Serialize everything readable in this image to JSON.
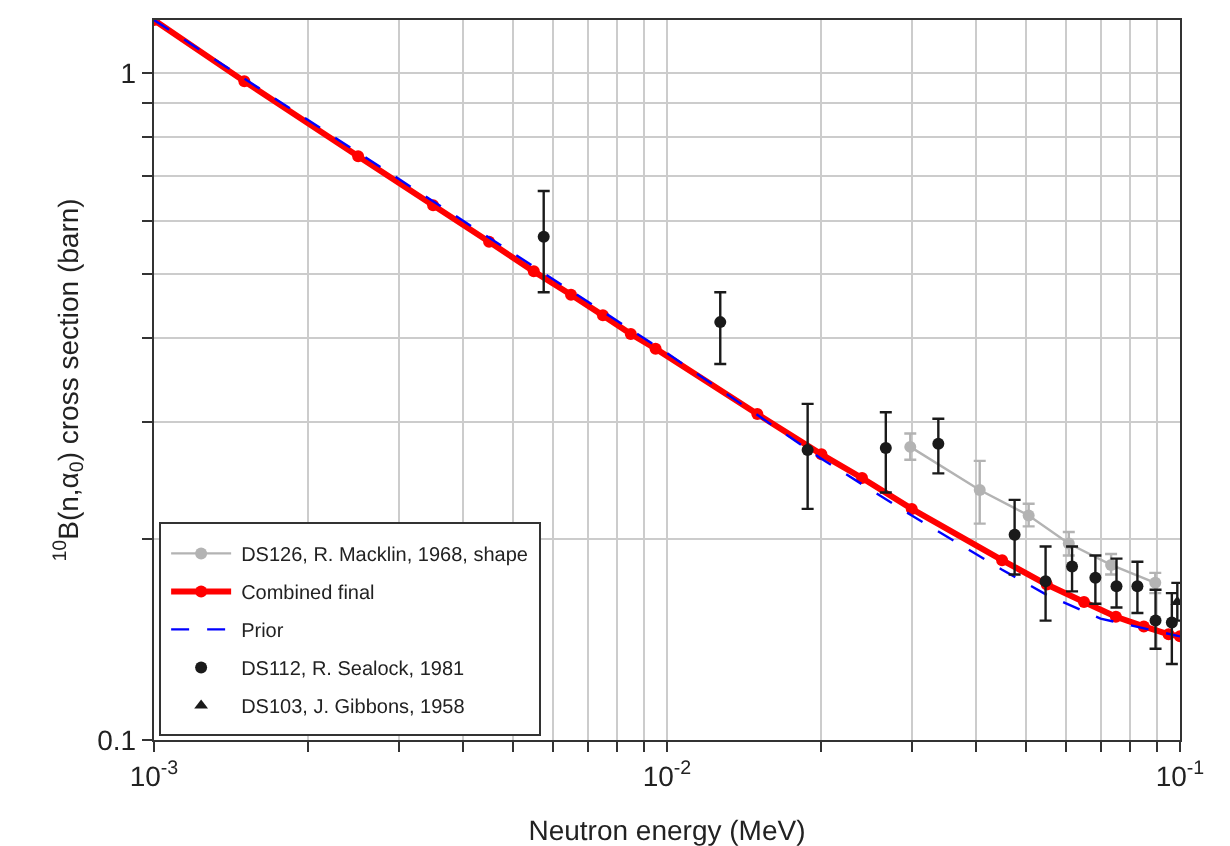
{
  "chart_data": {
    "type": "scatter",
    "xlabel": "Neutron energy (MeV)",
    "ylabel": "$^{10}$B(n,α$_{0}$) cross section (barn)",
    "log": "xy",
    "grid": true,
    "legend": "bottom left",
    "xlim": [
      0.001,
      0.1
    ],
    "xticks": [
      {
        "value": 0.001,
        "label": "10$^{-3}$"
      },
      {
        "value": 0.002,
        "label": null
      },
      {
        "value": 0.003,
        "label": null
      },
      {
        "value": 0.004,
        "label": null
      },
      {
        "value": 0.005,
        "label": null
      },
      {
        "value": 0.006,
        "label": null
      },
      {
        "value": 0.007,
        "label": null
      },
      {
        "value": 0.008,
        "label": null
      },
      {
        "value": 0.009,
        "label": null
      },
      {
        "value": 0.01,
        "label": "10$^{-2}$"
      },
      {
        "value": 0.02,
        "label": null
      },
      {
        "value": 0.03,
        "label": null
      },
      {
        "value": 0.04,
        "label": null
      },
      {
        "value": 0.05,
        "label": null
      },
      {
        "value": 0.06,
        "label": null
      },
      {
        "value": 0.07,
        "label": null
      },
      {
        "value": 0.08,
        "label": null
      },
      {
        "value": 0.09,
        "label": null
      },
      {
        "value": 0.1,
        "label": "10$^{-1}$"
      }
    ],
    "ylim": [
      0.1,
      1.2
    ],
    "yticks": [
      0.1,
      {
        "value": 0.2,
        "label": null
      },
      {
        "value": 0.3,
        "label": null
      },
      {
        "value": 0.4,
        "label": null
      },
      {
        "value": 0.5,
        "label": null
      },
      {
        "value": 0.6,
        "label": null
      },
      {
        "value": 0.7,
        "label": null
      },
      {
        "value": 0.8,
        "label": null
      },
      {
        "value": 0.9,
        "label": null
      },
      1
    ],
    "series": [
      {
        "name": "DS112, R. Sealock, 1981",
        "marker": "circle",
        "color": "#1a1a1a",
        "x": [
          0.00575,
          0.0127,
          0.0188,
          0.0267,
          0.0338,
          0.0476,
          0.0547,
          0.0616,
          0.0684,
          0.0752,
          0.0826,
          0.0896,
          0.0964
        ],
        "values": [
          0.568,
          0.423,
          0.272,
          0.274,
          0.278,
          0.203,
          0.173,
          0.182,
          0.175,
          0.17,
          0.17,
          0.151,
          0.15
        ],
        "errors": [
          [
            0.469,
            0.665
          ],
          [
            0.366,
            0.469
          ],
          [
            0.222,
            0.319
          ],
          [
            0.235,
            0.31
          ],
          [
            0.251,
            0.303
          ],
          [
            0.177,
            0.229
          ],
          [
            0.151,
            0.195
          ],
          [
            0.167,
            0.195
          ],
          [
            0.16,
            0.189
          ],
          [
            0.158,
            0.187
          ],
          [
            0.155,
            0.185
          ],
          [
            0.137,
            0.168
          ],
          [
            0.13,
            0.166
          ]
        ]
      },
      {
        "name": "DS103, J. Gibbons, 1958",
        "marker": "triangle",
        "color": "#1a1a1a",
        "x": [
          0.0988
        ],
        "values": [
          0.161
        ],
        "errors": [
          [
            0.151,
            0.172
          ]
        ]
      },
      {
        "name": "DS126, R. Macklin, 1968, shape",
        "type": "line",
        "marker": "circle",
        "color": "#b3b3b3",
        "x": [
          0.0298,
          0.0407,
          0.0507,
          0.0607,
          0.0734,
          0.0895
        ],
        "values": [
          0.275,
          0.237,
          0.217,
          0.197,
          0.183,
          0.172
        ],
        "errors": [
          [
            0.263,
            0.288
          ],
          [
            0.211,
            0.262
          ],
          [
            0.209,
            0.226
          ],
          [
            0.189,
            0.205
          ],
          [
            0.177,
            0.19
          ],
          [
            0.166,
            0.178
          ]
        ]
      },
      {
        "name": "Combined final",
        "type": "line",
        "marker": "circle",
        "color": "#ff0000",
        "x": [
          0.001,
          0.0015,
          0.0025,
          0.0035,
          0.0045,
          0.0055,
          0.0065,
          0.0075,
          0.0085,
          0.0095,
          0.015,
          0.02,
          0.024,
          0.03,
          0.045,
          0.055,
          0.065,
          0.075,
          0.085,
          0.095,
          0.1
        ],
        "values": [
          1.2,
          0.971,
          0.75,
          0.633,
          0.558,
          0.504,
          0.465,
          0.433,
          0.406,
          0.386,
          0.308,
          0.268,
          0.247,
          0.222,
          0.186,
          0.171,
          0.161,
          0.153,
          0.148,
          0.144,
          0.143
        ]
      },
      {
        "name": "Prior",
        "type": "line",
        "marker": "none",
        "line_style": "dashed",
        "color": "#0000ff",
        "x": [
          0.001,
          0.01,
          0.02,
          0.03,
          0.045,
          0.055,
          0.07,
          0.1
        ],
        "values": [
          1.2,
          0.38,
          0.264,
          0.217,
          0.18,
          0.165,
          0.152,
          0.143
        ]
      }
    ]
  }
}
